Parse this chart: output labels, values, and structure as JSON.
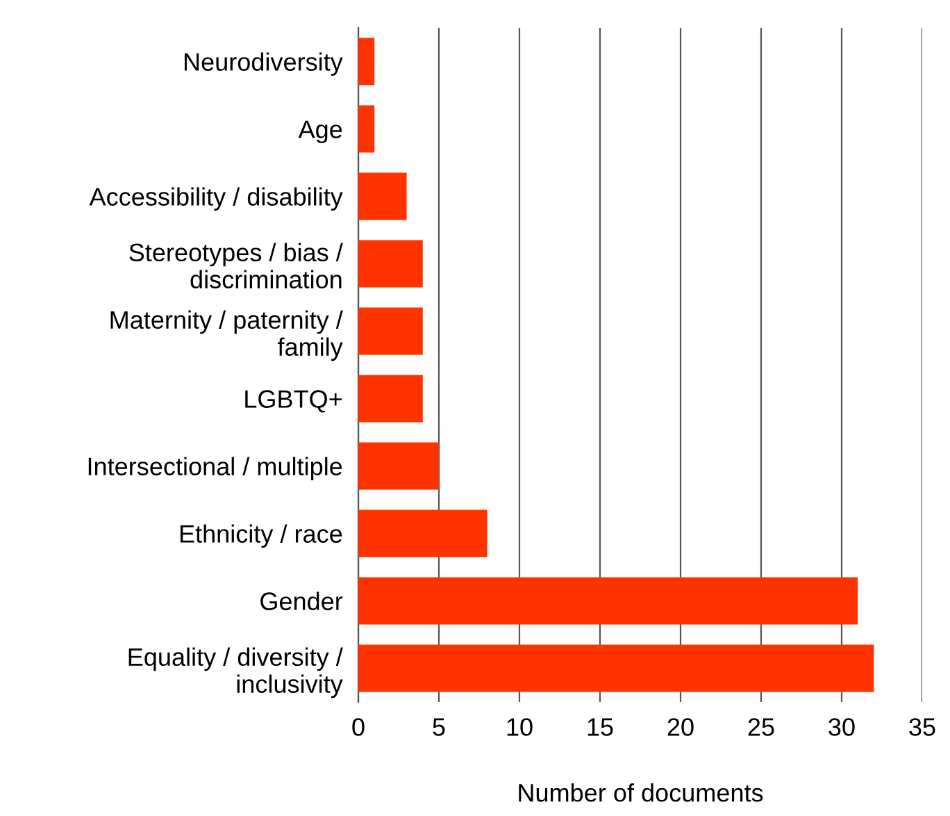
{
  "chart_data": {
    "type": "bar",
    "orientation": "horizontal",
    "xlabel": "Number of documents",
    "categories": [
      "Neurodiversity",
      "Age",
      "Accessibility / disability",
      "Stereotypes / bias /\ndiscrimination",
      "Maternity / paternity /\nfamily",
      "LGBTQ+",
      "Intersectional / multiple",
      "Ethnicity / race",
      "Gender",
      "Equality / diversity /\ninclusivity"
    ],
    "values": [
      1,
      1,
      3,
      4,
      4,
      4,
      5,
      8,
      31,
      32
    ],
    "color": "#ff3300",
    "xlim": [
      0,
      35
    ],
    "xticks": [
      0,
      5,
      10,
      15,
      20,
      25,
      30,
      35
    ],
    "grid": "x",
    "legend": false
  }
}
